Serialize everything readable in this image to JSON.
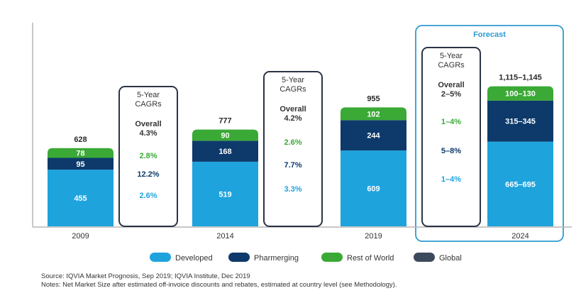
{
  "chart_data": {
    "type": "bar",
    "stacked": true,
    "categories": [
      "2009",
      "2014",
      "2019",
      "2024"
    ],
    "series": [
      {
        "name": "Developed",
        "color": "#1ea3dd",
        "values": [
          455,
          519,
          609,
          680
        ],
        "labels": [
          "455",
          "519",
          "609",
          "665–695"
        ]
      },
      {
        "name": "Pharmerging",
        "color": "#0d3a6b",
        "values": [
          95,
          168,
          244,
          330
        ],
        "labels": [
          "95",
          "168",
          "244",
          "315–345"
        ]
      },
      {
        "name": "Rest of World",
        "color": "#3aa935",
        "values": [
          78,
          90,
          102,
          115
        ],
        "labels": [
          "78",
          "90",
          "102",
          "100–130"
        ]
      }
    ],
    "totals": [
      "628",
      "777",
      "955",
      "1,115–1,145"
    ],
    "legend": [
      {
        "name": "Developed",
        "color": "#1ea3dd"
      },
      {
        "name": "Pharmerging",
        "color": "#0d3a6b"
      },
      {
        "name": "Rest of World",
        "color": "#3aa935"
      },
      {
        "name": "Global",
        "color": "#3d4a5c"
      }
    ],
    "cagr_boxes": [
      {
        "title": [
          "5-Year",
          "CAGRs"
        ],
        "overall": [
          "Overall",
          "4.3%"
        ],
        "rest_of_world": "2.8%",
        "pharmerging": "12.2%",
        "developed": "2.6%"
      },
      {
        "title": [
          "5-Year",
          "CAGRs"
        ],
        "overall": [
          "Overall",
          "4.2%"
        ],
        "rest_of_world": "2.6%",
        "pharmerging": "7.7%",
        "developed": "3.3%"
      },
      {
        "title": [
          "5-Year",
          "CAGRs"
        ],
        "overall": [
          "Overall",
          "2–5%"
        ],
        "rest_of_world": "1–4%",
        "pharmerging": "5–8%",
        "developed": "1–4%"
      }
    ],
    "forecast_label": "Forecast",
    "ylim": [
      0,
      1300
    ],
    "grid": false,
    "legend_position": "bottom"
  },
  "notes": {
    "source": "Source: IQVIA Market Prognosis, Sep 2019; IQVIA Institute, Dec 2019",
    "notes": "Notes: Net Market Size after estimated off-invoice discounts and rebates, estimated at country level (see Methodology)."
  }
}
